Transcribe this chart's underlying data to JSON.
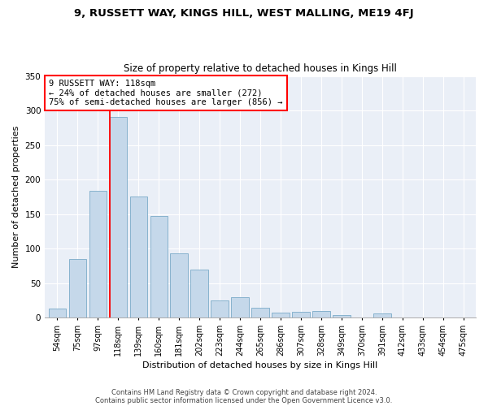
{
  "title": "9, RUSSETT WAY, KINGS HILL, WEST MALLING, ME19 4FJ",
  "subtitle": "Size of property relative to detached houses in Kings Hill",
  "xlabel": "Distribution of detached houses by size in Kings Hill",
  "ylabel": "Number of detached properties",
  "categories": [
    "54sqm",
    "75sqm",
    "97sqm",
    "118sqm",
    "139sqm",
    "160sqm",
    "181sqm",
    "202sqm",
    "223sqm",
    "244sqm",
    "265sqm",
    "286sqm",
    "307sqm",
    "328sqm",
    "349sqm",
    "370sqm",
    "391sqm",
    "412sqm",
    "433sqm",
    "454sqm",
    "475sqm"
  ],
  "values": [
    13,
    85,
    184,
    291,
    175,
    147,
    93,
    70,
    25,
    29,
    14,
    7,
    8,
    9,
    3,
    0,
    6,
    0,
    0,
    0,
    0
  ],
  "bar_color": "#c5d8ea",
  "bar_edge_color": "#7aaac8",
  "red_line_index": 3,
  "annotation_line1": "9 RUSSETT WAY: 118sqm",
  "annotation_line2": "← 24% of detached houses are smaller (272)",
  "annotation_line3": "75% of semi-detached houses are larger (856) →",
  "annotation_box_color": "white",
  "annotation_box_edge": "red",
  "red_line_color": "red",
  "ylim": [
    0,
    350
  ],
  "yticks": [
    0,
    50,
    100,
    150,
    200,
    250,
    300,
    350
  ],
  "bg_color": "#eaeff7",
  "footer_line1": "Contains HM Land Registry data © Crown copyright and database right 2024.",
  "footer_line2": "Contains public sector information licensed under the Open Government Licence v3.0."
}
